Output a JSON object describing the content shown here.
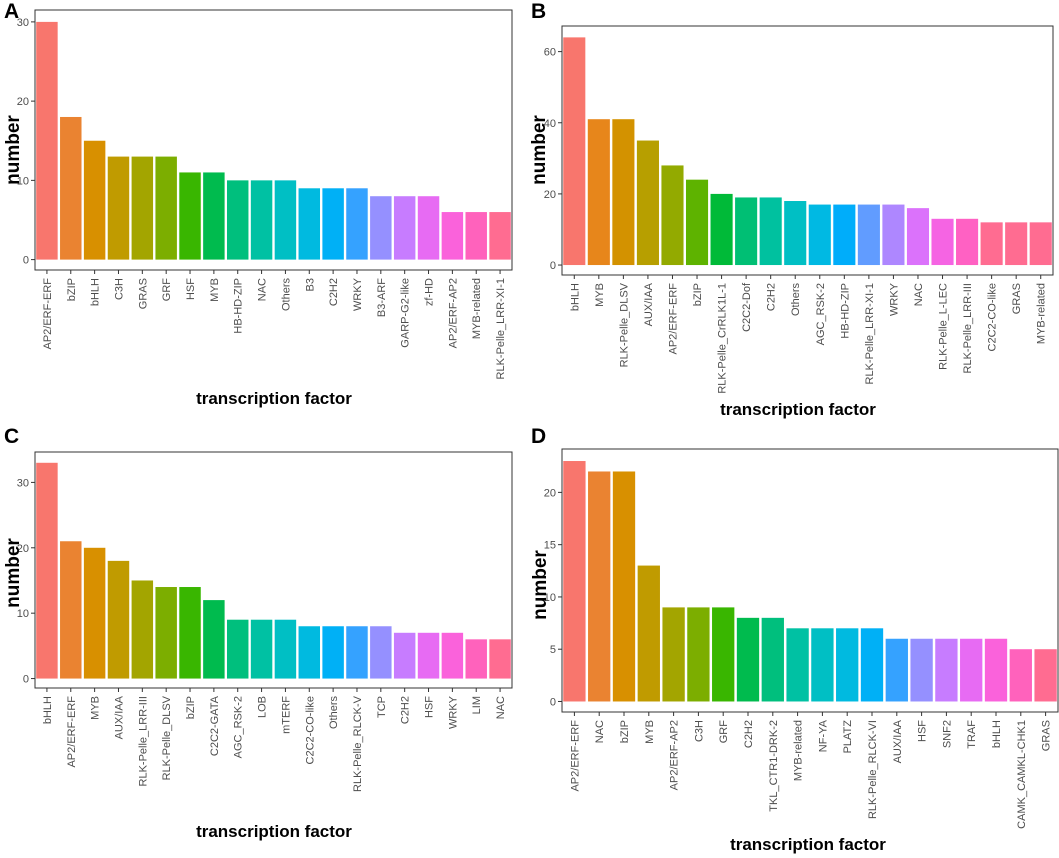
{
  "chart_data": [
    {
      "panel": "A",
      "type": "bar",
      "title": "",
      "xlabel": "transcription factor",
      "ylabel": "number",
      "ylim": [
        0,
        30
      ],
      "yticks": [
        0,
        10,
        20,
        30
      ],
      "categories": [
        "AP2/ERF-ERF",
        "bZIP",
        "bHLH",
        "C3H",
        "GRAS",
        "GRF",
        "HSF",
        "MYB",
        "HB-HD-ZIP",
        "NAC",
        "Others",
        "B3",
        "C2H2",
        "WRKY",
        "B3-ARF",
        "GARP-G2-like",
        "zf-HD",
        "AP2/ERF-AP2",
        "MYB-related",
        "RLK-Pelle_LRR-XI-1"
      ],
      "values": [
        30,
        18,
        15,
        13,
        13,
        13,
        11,
        11,
        10,
        10,
        10,
        9,
        9,
        9,
        8,
        8,
        8,
        6,
        6,
        6
      ],
      "colors": [
        "#F8766D",
        "#EA8331",
        "#D89000",
        "#C09B00",
        "#A3A500",
        "#7CAE00",
        "#39B600",
        "#00BB4E",
        "#00BF7D",
        "#00C1A3",
        "#00BFC4",
        "#00BAE0",
        "#00B0F6",
        "#35A2FF",
        "#9590FF",
        "#C77CFF",
        "#E76BF3",
        "#FA62DB",
        "#FF62BC",
        "#FF6C91"
      ]
    },
    {
      "panel": "B",
      "type": "bar",
      "title": "",
      "xlabel": "transcription factor",
      "ylabel": "number",
      "ylim": [
        0,
        64
      ],
      "yticks": [
        0,
        20,
        40,
        60
      ],
      "categories": [
        "bHLH",
        "MYB",
        "RLK-Pelle_DLSV",
        "AUX/IAA",
        "AP2/ERF-ERF",
        "bZIP",
        "RLK-Pelle_CrRLK1L-1",
        "C2C2-Dof",
        "C2H2",
        "Others",
        "AGC_RSK-2",
        "HB-HD-ZIP",
        "RLK-Pelle_LRR-XI-1",
        "WRKY",
        "NAC",
        "RLK-Pelle_L-LEC",
        "RLK-Pelle_LRR-III",
        "C2C2-CO-like",
        "GRAS",
        "MYB-related"
      ],
      "values": [
        64,
        41,
        41,
        35,
        28,
        24,
        20,
        19,
        19,
        18,
        17,
        17,
        17,
        17,
        16,
        13,
        13,
        12,
        12,
        12
      ],
      "colors": [
        "#F8766D",
        "#E7861B",
        "#D39200",
        "#B79F00",
        "#93AA00",
        "#5EB300",
        "#00BA38",
        "#00BF74",
        "#00C19F",
        "#00BFC4",
        "#00B9E3",
        "#00ADFA",
        "#619CFF",
        "#AE87FF",
        "#DB72FB",
        "#F564E3",
        "#FF61C3",
        "#FF6C91",
        "#FF6C91",
        "#FF6C91"
      ]
    },
    {
      "panel": "C",
      "type": "bar",
      "title": "",
      "xlabel": "transcription factor",
      "ylabel": "number",
      "ylim": [
        0,
        33
      ],
      "yticks": [
        0,
        10,
        20,
        30
      ],
      "categories": [
        "bHLH",
        "AP2/ERF-ERF",
        "MYB",
        "AUX/IAA",
        "RLK-Pelle_LRR-III",
        "RLK-Pelle_DLSV",
        "bZIP",
        "C2C2-GATA",
        "AGC_RSK-2",
        "LOB",
        "mTERF",
        "C2C2-CO-like",
        "Others",
        "RLK-Pelle_RLCK-V",
        "TCP",
        "C2H2",
        "HSF",
        "WRKY",
        "LIM",
        "NAC"
      ],
      "values": [
        33,
        21,
        20,
        18,
        15,
        14,
        14,
        12,
        9,
        9,
        9,
        8,
        8,
        8,
        8,
        7,
        7,
        7,
        6,
        6
      ],
      "colors": [
        "#F8766D",
        "#EA8331",
        "#D89000",
        "#C09B00",
        "#A3A500",
        "#7CAE00",
        "#39B600",
        "#00BB4E",
        "#00BF7D",
        "#00C1A3",
        "#00BFC4",
        "#00BAE0",
        "#00B0F6",
        "#35A2FF",
        "#9590FF",
        "#C77CFF",
        "#E76BF3",
        "#FA62DB",
        "#FF62BC",
        "#FF6C91"
      ]
    },
    {
      "panel": "D",
      "type": "bar",
      "title": "",
      "xlabel": "transcription factor",
      "ylabel": "number",
      "ylim": [
        0,
        23
      ],
      "yticks": [
        0,
        5,
        10,
        15,
        20
      ],
      "categories": [
        "AP2/ERF-ERF",
        "NAC",
        "bZIP",
        "MYB",
        "AP2/ERF-AP2",
        "C3H",
        "GRF",
        "C2H2",
        "TKL_CTR1-DRK-2",
        "MYB-related",
        "NF-YA",
        "PLATZ",
        "RLK-Pelle_RLCK-VI",
        "AUX/IAA",
        "HSF",
        "SNF2",
        "TRAF",
        "bHLH",
        "CAMK_CAMKL-CHK1",
        "GRAS"
      ],
      "values": [
        23,
        22,
        22,
        13,
        9,
        9,
        9,
        8,
        8,
        7,
        7,
        7,
        7,
        6,
        6,
        6,
        6,
        6,
        5,
        5
      ],
      "colors": [
        "#F8766D",
        "#EA8331",
        "#D89000",
        "#C09B00",
        "#A3A500",
        "#7CAE00",
        "#39B600",
        "#00BB4E",
        "#00BF7D",
        "#00C1A3",
        "#00BFC4",
        "#00BAE0",
        "#00B0F6",
        "#35A2FF",
        "#9590FF",
        "#C77CFF",
        "#E76BF3",
        "#FA62DB",
        "#FF62BC",
        "#FF6C91"
      ]
    }
  ]
}
